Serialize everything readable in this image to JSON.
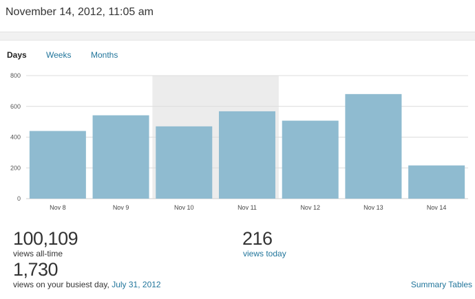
{
  "header": {
    "title": "November 14, 2012, 11:05 am"
  },
  "tabs": {
    "days": "Days",
    "weeks": "Weeks",
    "months": "Months"
  },
  "chart_data": {
    "type": "bar",
    "categories": [
      "Nov 8",
      "Nov 9",
      "Nov 10",
      "Nov 11",
      "Nov 12",
      "Nov 13",
      "Nov 14"
    ],
    "values": [
      440,
      542,
      470,
      568,
      507,
      680,
      216
    ],
    "ylim": [
      0,
      800
    ],
    "yticks": [
      0,
      200,
      400,
      600,
      800
    ],
    "highlighted_range": [
      "Nov 10",
      "Nov 11"
    ],
    "grid": true,
    "title": "",
    "xlabel": "",
    "ylabel": "",
    "bar_color": "#8fbbd0",
    "highlight_color": "#ececec"
  },
  "stats": {
    "total_value": "100,109",
    "total_label": "views all-time",
    "today_value": "216",
    "today_label": "views today",
    "busiest_value": "1,730",
    "busiest_label": "views on your busiest day,",
    "busiest_date": "July 31, 2012"
  },
  "links": {
    "summary": "Summary Tables"
  },
  "colors": {
    "link": "#21759b",
    "text": "#333333"
  }
}
